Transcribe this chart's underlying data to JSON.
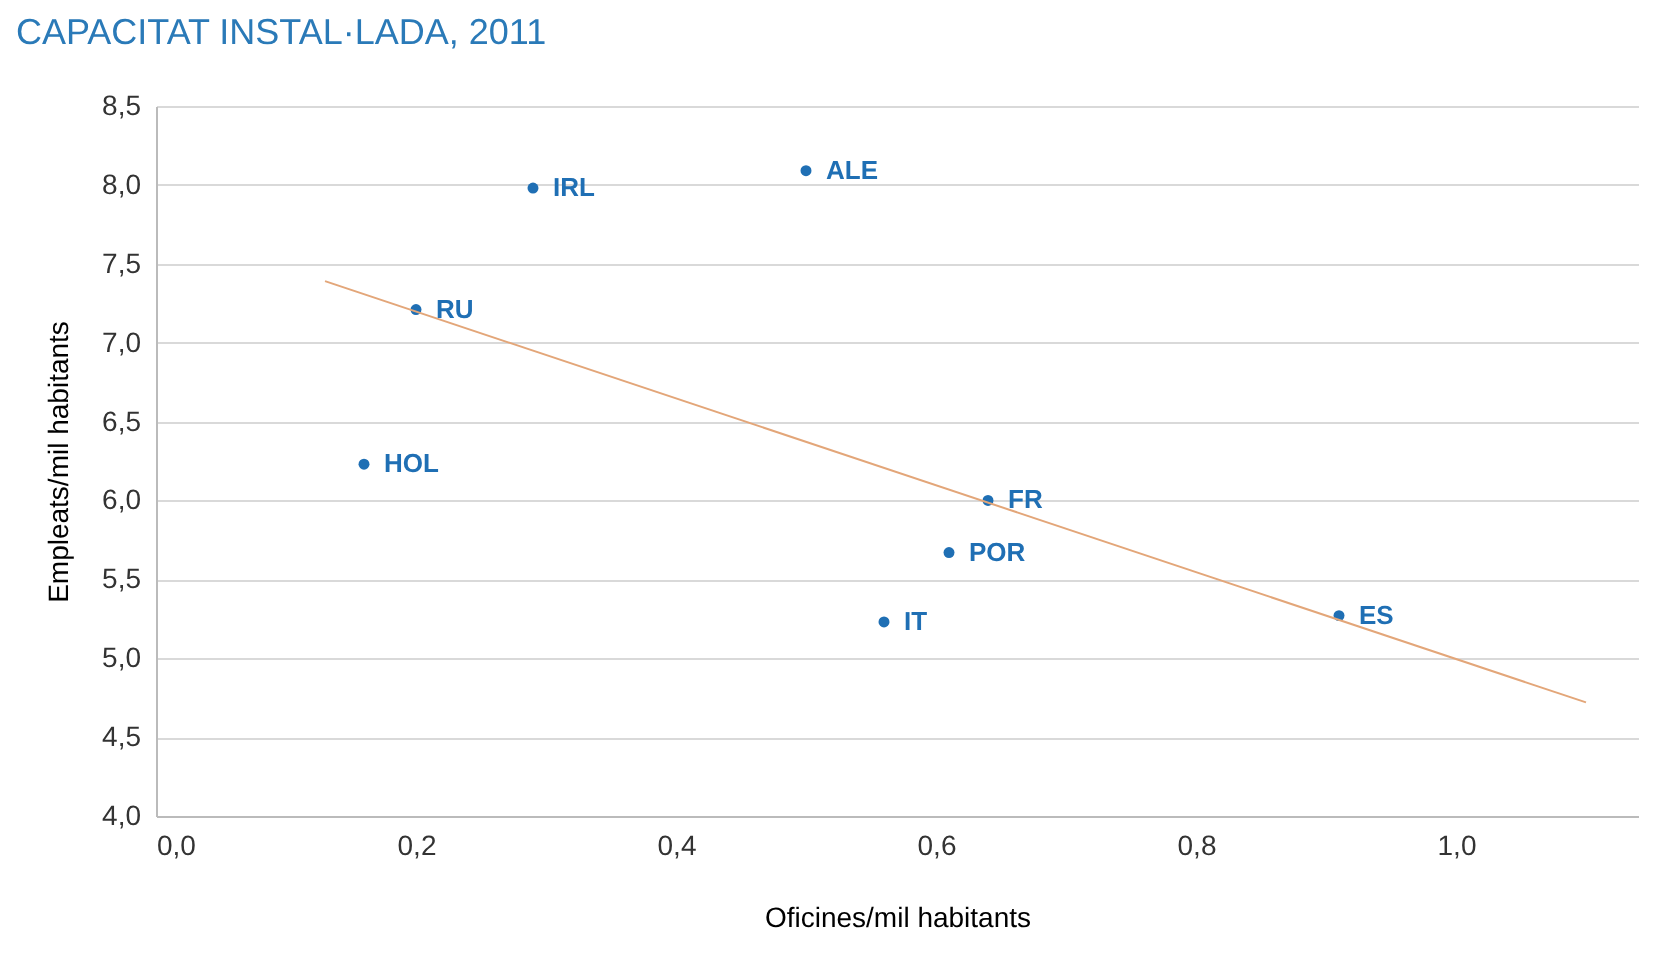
{
  "chart_data": {
    "type": "scatter",
    "title": "CAPACITAT INSTAL·LADA, 2011",
    "xlabel": "Oficines/mil habitants",
    "ylabel": "Empleats/mil habitants",
    "series": [
      {
        "color": "#1f6fb4",
        "marker": "circle",
        "x": [
          0.29,
          0.5,
          0.2,
          0.16,
          0.64,
          0.61,
          0.56,
          0.91
        ],
        "values": [
          7.98,
          8.09,
          7.21,
          6.23,
          6.0,
          5.67,
          5.23,
          5.27
        ]
      },
      {
        "type": "line",
        "color": "#e3a679",
        "x": [
          0.13,
          1.1
        ],
        "values": [
          7.39,
          4.72
        ]
      }
    ],
    "annotations": [
      {
        "text": "IRL",
        "x": 0.29,
        "y": 7.98
      },
      {
        "text": "ALE",
        "x": 0.5,
        "y": 8.09
      },
      {
        "text": "RU",
        "x": 0.2,
        "y": 7.21
      },
      {
        "text": "HOL",
        "x": 0.16,
        "y": 6.23
      },
      {
        "text": "FR",
        "x": 0.64,
        "y": 6.0
      },
      {
        "text": "POR",
        "x": 0.61,
        "y": 5.67
      },
      {
        "text": "IT",
        "x": 0.56,
        "y": 5.23
      },
      {
        "text": "ES",
        "x": 0.91,
        "y": 5.27
      }
    ],
    "xlim": [
      0,
      1.14
    ],
    "ylim": [
      4,
      8.5
    ],
    "xticks": [
      {
        "value": 0,
        "label": "0,0"
      },
      {
        "value": 0.2,
        "label": "0,2"
      },
      {
        "value": 0.4,
        "label": "0,4"
      },
      {
        "value": 0.6,
        "label": "0,6"
      },
      {
        "value": 0.8,
        "label": "0,8"
      },
      {
        "value": 1.0,
        "label": "1,0"
      }
    ],
    "yticks": [
      {
        "value": 4,
        "label": "4,0"
      },
      {
        "value": 4.5,
        "label": "4,5"
      },
      {
        "value": 5,
        "label": "5,0"
      },
      {
        "value": 5.5,
        "label": "5,5"
      },
      {
        "value": 6,
        "label": "6,0"
      },
      {
        "value": 6.5,
        "label": "6,5"
      },
      {
        "value": 7,
        "label": "7,0"
      },
      {
        "value": 7.5,
        "label": "7,5"
      },
      {
        "value": 8,
        "label": "8,0"
      },
      {
        "value": 8.5,
        "label": "8,5"
      }
    ],
    "grid": "y"
  }
}
